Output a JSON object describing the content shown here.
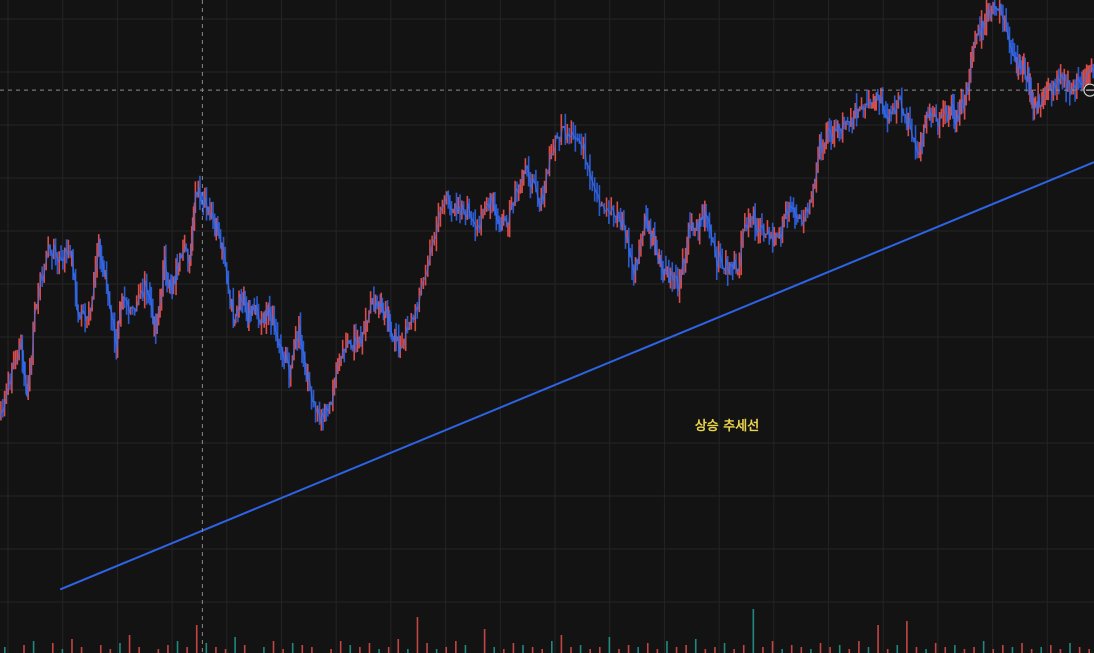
{
  "chart_data": {
    "type": "line",
    "title": "",
    "xlabel": "",
    "ylabel": "",
    "ylim": [
      0,
      100
    ],
    "xlim": [
      0,
      100
    ],
    "grid": true,
    "series": [
      {
        "role": "price",
        "x": [
          0,
          1,
          2,
          2.5,
          3.4,
          4.5,
          5.5,
          6.5,
          7.2,
          8.2,
          9.1,
          9.8,
          10.7,
          11.3,
          12.4,
          13.5,
          14.3,
          15.1,
          15.8,
          16.5,
          17.4,
          17.9,
          18.8,
          19.7,
          20.5,
          21.4,
          22.0,
          22.7,
          23.3,
          24.1,
          24.7,
          25.6,
          26.5,
          27.4,
          28.2,
          29.3,
          30.2,
          31.1,
          32.0,
          32.9,
          33.8,
          34.7,
          35.3,
          35.8,
          36.5,
          37.5,
          38.6,
          39.8,
          40.9,
          41.8,
          42.8,
          43.9,
          44.9,
          45.7,
          46.5,
          47.5,
          48.4,
          49.4,
          50.3,
          51.4,
          52.5,
          53.6,
          54.9,
          56.2,
          57.1,
          58.0,
          59.0,
          59.8,
          60.4,
          61.2,
          62.2,
          63.0,
          63.9,
          64.6,
          65.6,
          66.6,
          67.5,
          68.5,
          69.4,
          70.4,
          71.3,
          72.2,
          73.0,
          74.1,
          75.0,
          75.9,
          76.8,
          77.7,
          78.5,
          79.5,
          80.3,
          81.2,
          82.2,
          83.1,
          84.1,
          84.9,
          85.8,
          86.8,
          87.5,
          88.4,
          89.2,
          90.1,
          91.0,
          91.9,
          92.8,
          93.3,
          94.0,
          94.6,
          95.3,
          96.2,
          97.2,
          98.2,
          99.1,
          100
        ],
        "y": [
          22,
          30,
          36,
          26,
          44,
          54,
          52,
          54,
          41,
          42,
          54,
          47,
          36,
          44,
          43,
          47,
          38,
          51,
          45,
          54,
          52,
          65,
          63,
          59,
          52,
          41,
          45,
          41,
          42,
          39,
          42,
          35,
          31,
          39,
          29,
          22,
          24,
          34,
          37,
          36,
          43,
          44,
          41,
          39,
          35,
          39,
          46,
          57,
          64,
          60,
          61,
          58,
          64,
          58,
          60,
          67,
          68,
          61,
          71,
          76,
          76,
          71,
          63,
          60,
          58,
          49,
          59,
          56,
          51,
          49,
          47,
          57,
          58,
          61,
          52,
          50,
          51,
          61,
          58,
          57,
          55,
          63,
          58,
          62,
          73,
          75,
          76,
          77,
          80,
          82,
          83,
          79,
          81,
          77,
          72,
          79,
          77,
          80,
          78,
          83,
          93,
          97,
          100,
          96,
          90,
          88,
          86,
          80,
          82,
          84,
          85,
          84,
          86,
          87
        ]
      }
    ],
    "trendline": {
      "label": "상승 추세선",
      "from": [
        5.5,
        -10
      ],
      "to": [
        100,
        70
      ],
      "color": "#2f63e6"
    },
    "crosshair": {
      "x": 18.5,
      "y": 83.5
    },
    "volume": [
      3,
      0,
      4,
      6,
      0,
      5,
      2,
      7,
      3,
      0,
      4,
      2,
      5,
      9,
      3,
      0,
      2,
      4,
      6,
      3,
      14,
      5,
      3,
      2,
      8,
      4,
      0,
      3,
      6,
      2,
      5,
      4,
      3,
      0,
      2,
      6,
      4,
      3,
      5,
      2,
      3,
      7,
      2,
      18,
      5,
      2,
      3,
      6,
      4,
      0,
      12,
      3,
      2,
      5,
      4,
      3,
      2,
      6,
      9,
      3,
      4,
      2,
      3,
      8,
      2,
      4,
      3,
      5,
      2,
      6,
      3,
      4,
      7,
      2,
      3,
      5,
      2,
      4,
      22,
      3,
      6,
      2,
      4,
      3,
      2,
      5,
      3,
      4,
      2,
      6,
      3,
      14,
      2,
      4,
      16,
      3,
      2,
      5,
      3,
      4,
      2,
      3,
      6,
      2,
      4,
      3,
      5,
      2,
      3,
      4,
      2,
      5,
      3,
      2
    ],
    "colors": {
      "background": "#131313",
      "grid": "#242424",
      "up": "#ef5350",
      "down": "#2f63e6",
      "price_line": "#3a6fe8",
      "label": "#e8d44d",
      "crosshair": "#8a8a8a",
      "volume_up": "#26a69a",
      "volume_down": "#ef5350"
    }
  }
}
